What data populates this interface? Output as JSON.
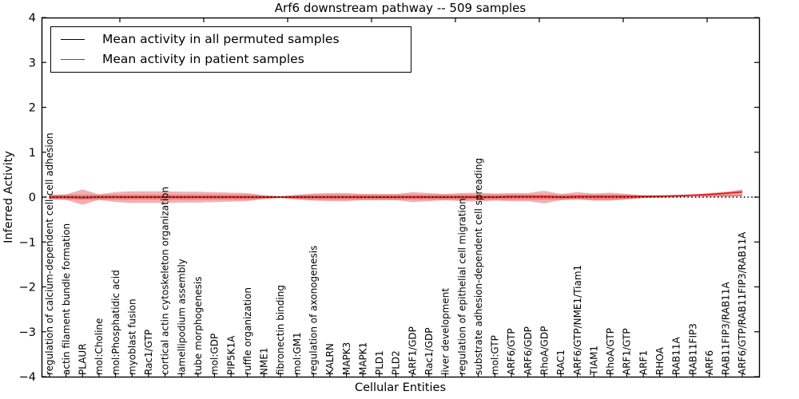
{
  "chart_data": {
    "type": "line",
    "title": "Arf6 downstream pathway -- 509 samples",
    "xlabel": "Cellular Entities",
    "ylabel": "Inferred Activity",
    "ylim": [
      -4,
      4
    ],
    "grid": false,
    "legend_position": "upper left",
    "yticks": [
      {
        "value": 4,
        "label": "4"
      },
      {
        "value": 3,
        "label": "3"
      },
      {
        "value": 2,
        "label": "2"
      },
      {
        "value": 1,
        "label": "1"
      },
      {
        "value": 0,
        "label": "0"
      },
      {
        "value": -1,
        "label": "−1"
      },
      {
        "value": -2,
        "label": "−2"
      },
      {
        "value": -3,
        "label": "−3"
      },
      {
        "value": -4,
        "label": "−4"
      }
    ],
    "categories": [
      "regulation of calcium-dependent cell-cell adhesion",
      "actin filament bundle formation",
      "PLAUR",
      "mol:Choline",
      "mol:Phosphatidic acid",
      "myoblast fusion",
      "Rac1/GTP",
      "cortical actin cytoskeleton organization",
      "lamellipodium assembly",
      "tube morphogenesis",
      "mol:GDP",
      "PIP5K1A",
      "ruffle organization",
      "NME1",
      "fibronectin binding",
      "mol:GM1",
      "regulation of axonogenesis",
      "KALRN",
      "MAPK3",
      "MAPK1",
      "PLD1",
      "PLD2",
      "ARF1/GDP",
      "Rac1/GDP",
      "liver development",
      "regulation of epithelial cell migration",
      "substrate adhesion-dependent cell spreading",
      "mol:GTP",
      "ARF6/GTP",
      "ARF6/GDP",
      "RhoA/GDP",
      "RAC1",
      "ARF6/GTP/NME1/Tiam1",
      "TIAM1",
      "RhoA/GTP",
      "ARF1/GTP",
      "ARF1",
      "RHOA",
      "RAB11A",
      "RAB11FIP3",
      "ARF6",
      "RAB11FIP3/RAB11A",
      "ARF6/GTP/RAB11FIP3/RAB11A"
    ],
    "series": [
      {
        "name": "Mean activity in all permuted samples",
        "color": "#000000",
        "style": "dotted",
        "values": [
          0,
          0,
          0,
          0,
          0,
          0,
          0,
          0,
          0,
          0,
          0,
          0,
          0,
          0,
          0,
          0,
          0,
          0,
          0,
          0,
          0,
          0,
          0,
          0,
          0,
          0,
          0,
          0,
          0,
          0,
          0,
          0,
          0,
          0,
          0,
          0,
          0,
          0,
          0,
          0,
          0,
          0,
          0
        ]
      },
      {
        "name": "Mean activity in patient samples",
        "color": "#e41a1c",
        "style": "solid",
        "values": [
          0,
          0,
          -0.01,
          0,
          0,
          0,
          0,
          0,
          0,
          0,
          0,
          0,
          0,
          0,
          0,
          0,
          0,
          0,
          0,
          0,
          0,
          0,
          0,
          0,
          0,
          0,
          0,
          0,
          0.01,
          0.01,
          0.01,
          0,
          0.01,
          0.01,
          0.01,
          0.01,
          0.015,
          0.02,
          0.03,
          0.045,
          0.06,
          0.085,
          0.115
        ]
      }
    ],
    "band": {
      "name": "patient activity spread",
      "color": "#dd3939",
      "opacity": 0.4,
      "inner_halfwidth": 0.055,
      "upper": [
        0.05,
        0.06,
        0.17,
        0.06,
        0.11,
        0.13,
        0.13,
        0.13,
        0.12,
        0.12,
        0.11,
        0.1,
        0.09,
        0.04,
        0.02,
        0.05,
        0.08,
        0.09,
        0.09,
        0.07,
        0.07,
        0.07,
        0.11,
        0.09,
        0.07,
        0.09,
        0.1,
        0.08,
        0.09,
        0.09,
        0.14,
        0.07,
        0.11,
        0.08,
        0.1,
        0.07,
        0.04,
        0.04,
        0.04,
        0.05,
        0.09,
        0.12,
        0.17
      ],
      "lower": [
        -0.05,
        -0.06,
        -0.17,
        -0.06,
        -0.11,
        -0.13,
        -0.13,
        -0.13,
        -0.12,
        -0.12,
        -0.11,
        -0.1,
        -0.09,
        -0.04,
        -0.02,
        -0.05,
        -0.08,
        -0.09,
        -0.09,
        -0.07,
        -0.07,
        -0.07,
        -0.11,
        -0.09,
        -0.07,
        -0.09,
        -0.1,
        -0.08,
        -0.09,
        -0.09,
        -0.14,
        -0.07,
        -0.05,
        -0.08,
        -0.08,
        -0.05,
        -0.02,
        -0.01,
        0.0,
        0.01,
        0.01,
        0.01,
        0.02
      ]
    }
  }
}
